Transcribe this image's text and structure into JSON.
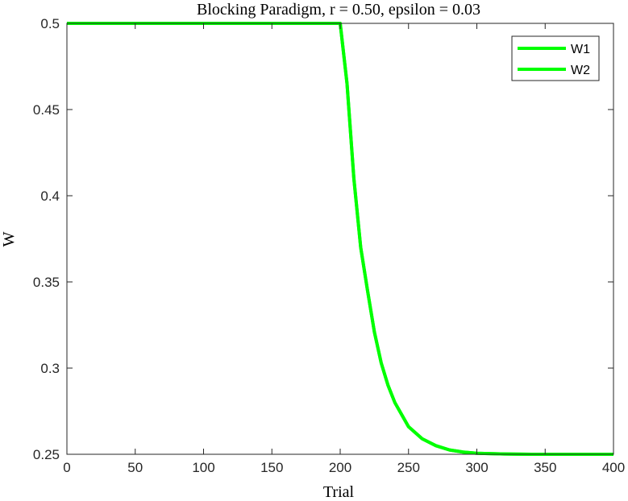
{
  "chart_data": {
    "type": "line",
    "title": "Blocking Paradigm, r = 0.50, epsilon = 0.03",
    "xlabel": "Trial",
    "ylabel": "W",
    "xlim": [
      0,
      400
    ],
    "ylim": [
      0.25,
      0.5
    ],
    "xticks": [
      0,
      50,
      100,
      150,
      200,
      250,
      300,
      350,
      400
    ],
    "yticks": [
      0.25,
      0.3,
      0.35,
      0.4,
      0.45,
      0.5
    ],
    "xtick_labels": [
      "0",
      "50",
      "100",
      "150",
      "200",
      "250",
      "300",
      "350",
      "400"
    ],
    "ytick_labels": [
      "0.25",
      "0.3",
      "0.35",
      "0.4",
      "0.45",
      "0.5"
    ],
    "grid": false,
    "legend_position": "top-right",
    "series": [
      {
        "name": "W1",
        "color": "#00ff00",
        "x": [
          0,
          50,
          100,
          150,
          200,
          205,
          210,
          215,
          220,
          225,
          230,
          235,
          240,
          250,
          260,
          270,
          280,
          290,
          300,
          320,
          340,
          360,
          380,
          400
        ],
        "y": [
          0.5,
          0.5,
          0.5,
          0.5,
          0.5,
          0.465,
          0.41,
          0.37,
          0.345,
          0.321,
          0.303,
          0.29,
          0.28,
          0.266,
          0.259,
          0.255,
          0.2525,
          0.2513,
          0.2506,
          0.2502,
          0.25,
          0.25,
          0.25,
          0.25
        ]
      },
      {
        "name": "W2",
        "color": "#00ff00",
        "x": [
          0,
          50,
          100,
          150,
          200,
          205,
          210,
          215,
          220,
          225,
          230,
          235,
          240,
          250,
          260,
          270,
          280,
          290,
          300,
          320,
          340,
          360,
          380,
          400
        ],
        "y": [
          0.5,
          0.5,
          0.5,
          0.5,
          0.5,
          0.465,
          0.41,
          0.37,
          0.345,
          0.321,
          0.303,
          0.29,
          0.28,
          0.266,
          0.259,
          0.255,
          0.2525,
          0.2513,
          0.2506,
          0.2502,
          0.25,
          0.25,
          0.25,
          0.25
        ]
      }
    ]
  }
}
